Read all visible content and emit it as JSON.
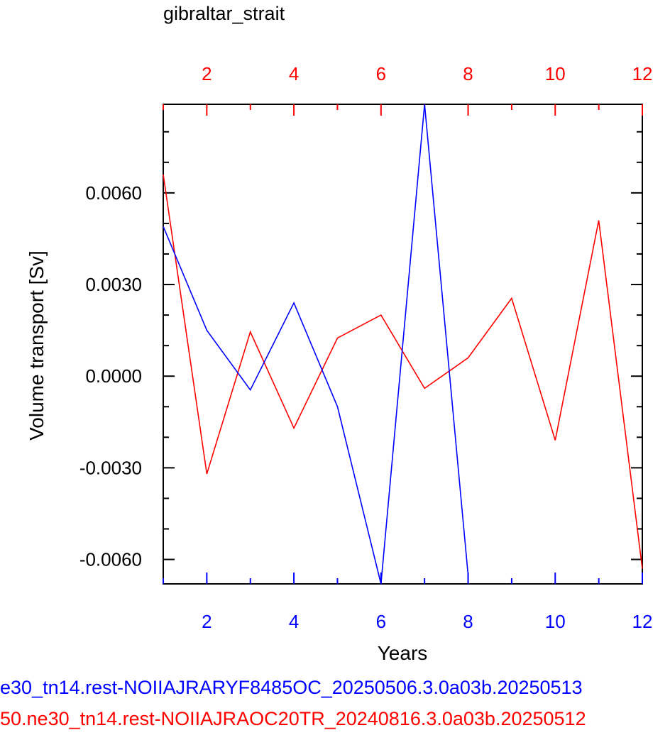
{
  "chart_data": {
    "type": "line",
    "title": "gibraltar_strait",
    "xlabel": "Years",
    "ylabel": "Volume transport [Sv]",
    "ylim": [
      -0.0068,
      0.0089
    ],
    "yticks": [
      -0.006,
      -0.003,
      0.0,
      0.003,
      0.006
    ],
    "ytick_labels": [
      "-0.0060",
      "-0.0030",
      "0.0000",
      "0.0030",
      "0.0060"
    ],
    "bottom_axis": {
      "color": "#0000ff",
      "xlim": [
        1,
        12
      ],
      "ticks": [
        2,
        4,
        6,
        8,
        10,
        12
      ]
    },
    "top_axis": {
      "color": "#ff0000",
      "xlim": [
        1,
        12
      ],
      "ticks": [
        2,
        4,
        6,
        8,
        10,
        12
      ]
    },
    "grid": false,
    "series": [
      {
        "name": "e30_tn14.rest-NOIIAJRARYF8485OC_20250506.3.0a03b.20250513",
        "color": "#0000ff",
        "x": [
          1,
          2,
          3,
          4,
          5,
          6,
          7,
          8
        ],
        "y": [
          0.0049,
          0.0015,
          -0.00045,
          0.0024,
          -0.001,
          -0.0068,
          0.0089,
          -0.0065
        ]
      },
      {
        "name": "50.ne30_tn14.rest-NOIIAJRAOC20TR_20240816.3.0a03b.20250512",
        "color": "#ff0000",
        "x": [
          1,
          2,
          3,
          4,
          5,
          6,
          7,
          8,
          9,
          10,
          11,
          12
        ],
        "y": [
          0.0066,
          -0.0032,
          0.00145,
          -0.0017,
          0.00125,
          0.002,
          -0.0004,
          0.0006,
          0.00255,
          -0.0021,
          0.0051,
          -0.0063
        ]
      }
    ]
  }
}
